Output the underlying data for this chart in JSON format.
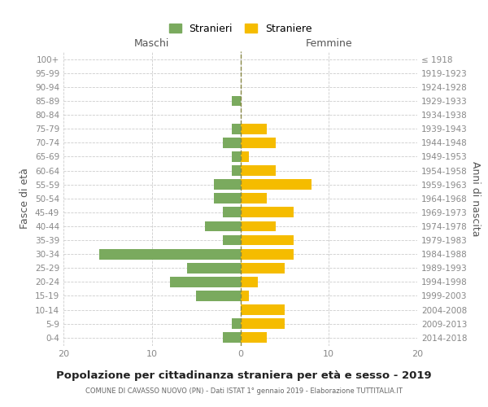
{
  "age_groups": [
    "0-4",
    "5-9",
    "10-14",
    "15-19",
    "20-24",
    "25-29",
    "30-34",
    "35-39",
    "40-44",
    "45-49",
    "50-54",
    "55-59",
    "60-64",
    "65-69",
    "70-74",
    "75-79",
    "80-84",
    "85-89",
    "90-94",
    "95-99",
    "100+"
  ],
  "birth_years": [
    "2014-2018",
    "2009-2013",
    "2004-2008",
    "1999-2003",
    "1994-1998",
    "1989-1993",
    "1984-1988",
    "1979-1983",
    "1974-1978",
    "1969-1973",
    "1964-1968",
    "1959-1963",
    "1954-1958",
    "1949-1953",
    "1944-1948",
    "1939-1943",
    "1934-1938",
    "1929-1933",
    "1924-1928",
    "1919-1923",
    "≤ 1918"
  ],
  "males": [
    2,
    1,
    0,
    5,
    8,
    6,
    16,
    2,
    4,
    2,
    3,
    3,
    1,
    1,
    2,
    1,
    0,
    1,
    0,
    0,
    0
  ],
  "females": [
    3,
    5,
    5,
    1,
    2,
    5,
    6,
    6,
    4,
    6,
    3,
    8,
    4,
    1,
    4,
    3,
    0,
    0,
    0,
    0,
    0
  ],
  "male_color": "#7aaa5e",
  "female_color": "#f5bc00",
  "background_color": "#ffffff",
  "grid_color": "#cccccc",
  "title": "Popolazione per cittadinanza straniera per età e sesso - 2019",
  "subtitle": "COMUNE DI CAVASSO NUOVO (PN) - Dati ISTAT 1° gennaio 2019 - Elaborazione TUTTITALIA.IT",
  "xlabel_left": "Maschi",
  "xlabel_right": "Femmine",
  "ylabel_left": "Fasce di età",
  "ylabel_right": "Anni di nascita",
  "legend_male": "Stranieri",
  "legend_female": "Straniere",
  "xlim": 20,
  "bar_height": 0.75
}
